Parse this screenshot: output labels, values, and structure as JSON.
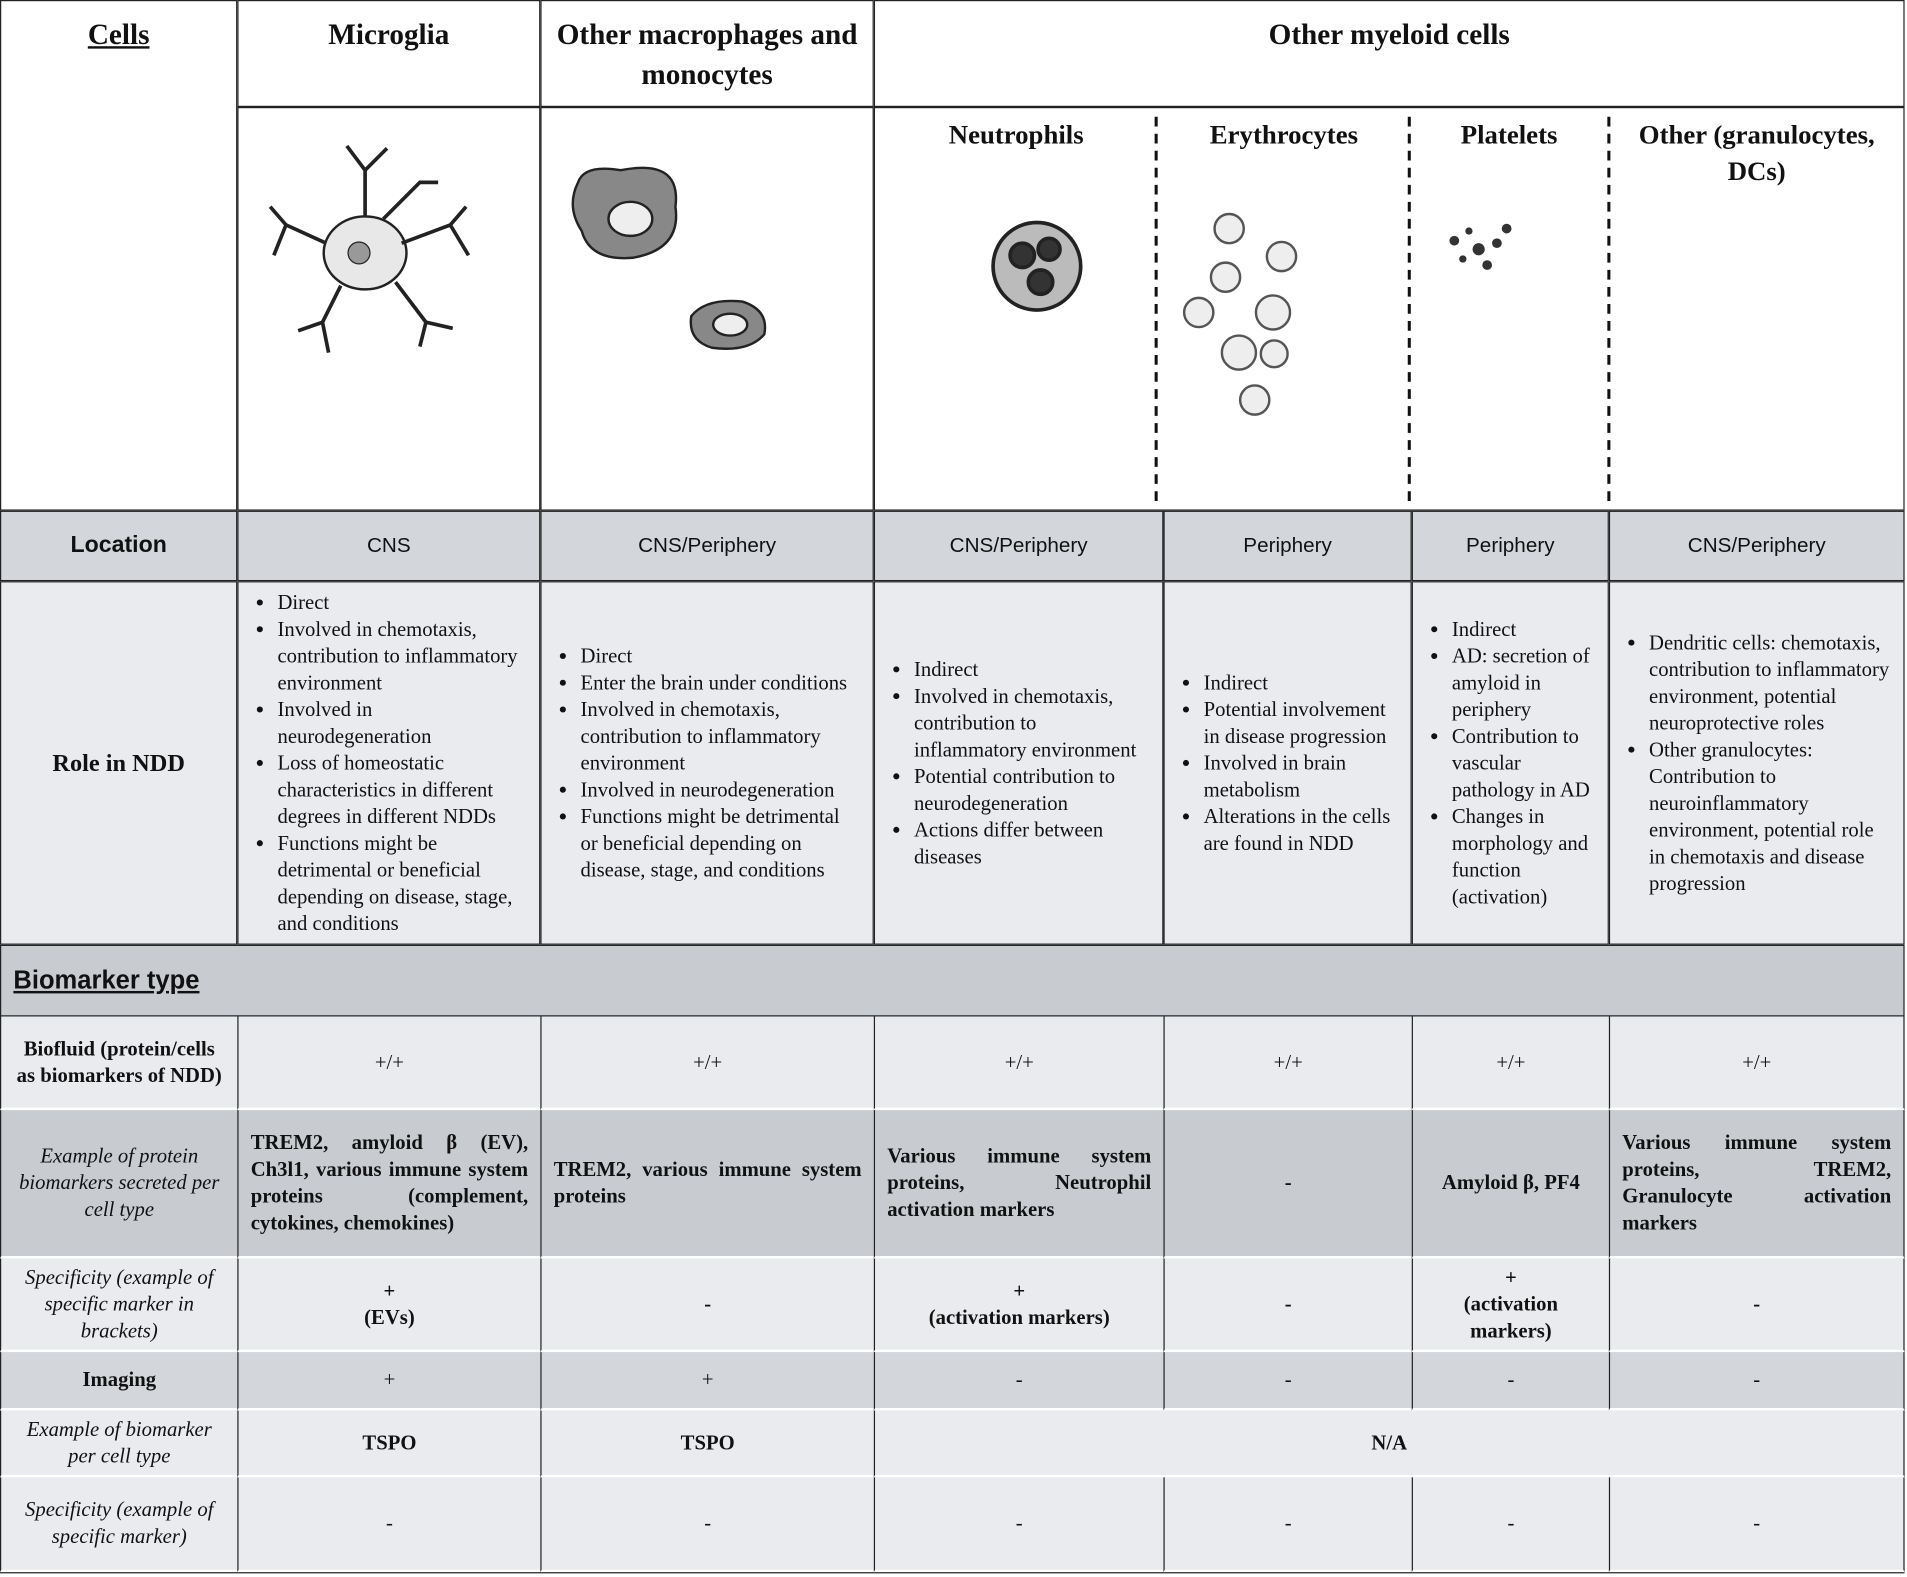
{
  "header": {
    "cells": "Cells",
    "microglia": "Microglia",
    "macrophages": "Other macrophages and monocytes",
    "myeloid": "Other myeloid cells",
    "subtypes": [
      "Neutrophils",
      "Erythrocytes",
      "Platelets",
      "Other (granulocytes, DCs)"
    ]
  },
  "location": {
    "label": "Location",
    "values": [
      "CNS",
      "CNS/Periphery",
      "CNS/Periphery",
      "Periphery",
      "Periphery",
      "CNS/Periphery"
    ]
  },
  "role": {
    "label": "Role in NDD",
    "values": [
      [
        "Direct",
        "Involved in chemotaxis, contribution to inflammatory environment",
        "Involved in neurodegeneration",
        "Loss of homeostatic characteristics in different degrees in different NDDs",
        "Functions might be detrimental or beneficial depending on disease, stage, and conditions"
      ],
      [
        "Direct",
        "Enter the brain under conditions",
        "Involved in chemotaxis, contribution to inflammatory environment",
        "Involved in neurodegeneration",
        "Functions might be detrimental or beneficial depending on disease, stage, and conditions"
      ],
      [
        "Indirect",
        "Involved in chemotaxis, contribution to inflammatory environment",
        "Potential contribution to neurodegeneration",
        "Actions differ between diseases"
      ],
      [
        "Indirect",
        "Potential involvement in disease progression",
        "Involved in brain metabolism",
        "Alterations in the cells are found in NDD"
      ],
      [
        "Indirect",
        "AD: secretion of amyloid in periphery",
        "Contribution to vascular pathology in AD",
        "Changes in morphology and function (activation)"
      ],
      [
        "Dendritic cells: chemotaxis, contribution to inflammatory environment, potential neuroprotective roles",
        "Other granulocytes: Contribution to neuroinflammatory environment, potential role in chemotaxis and disease progression"
      ]
    ]
  },
  "biomarker_type": "Biomarker type",
  "biofluid": {
    "label": "Biofluid (protein/cells as biomarkers of NDD)",
    "values": [
      "+/+",
      "+/+",
      "+/+",
      "+/+",
      "+/+",
      "+/+"
    ]
  },
  "protein_examples": {
    "label": "Example of protein biomarkers secreted per cell type",
    "values": [
      "TREM2, amyloid β (EV), Ch3l1, various immune system proteins (complement, cytokines, chemokines)",
      "TREM2, various immune system proteins",
      "Various immune system proteins, Neutrophil activation markers",
      "-",
      "Amyloid β, PF4",
      "Various immune system proteins, TREM2, Granulocyte activation markers"
    ]
  },
  "biofluid_specificity": {
    "label": "Specificity (example of specific marker in brackets)",
    "values": [
      {
        "mark": "+",
        "example": "(EVs)"
      },
      {
        "mark": "-"
      },
      {
        "mark": "+",
        "example": "(activation markers)"
      },
      {
        "mark": "-"
      },
      {
        "mark": "+",
        "example": "(activation markers)"
      },
      {
        "mark": "-"
      }
    ]
  },
  "imaging": {
    "label": "Imaging",
    "values": [
      "+",
      "+",
      "-",
      "-",
      "-",
      "-"
    ]
  },
  "imaging_examples": {
    "label": "Example of biomarker per cell type",
    "values": [
      "TSPO",
      "TSPO",
      "N/A"
    ]
  },
  "imaging_specificity": {
    "label": "Specificity (example of specific marker)",
    "values": [
      "-",
      "-",
      "-",
      "-",
      "-",
      "-"
    ]
  }
}
